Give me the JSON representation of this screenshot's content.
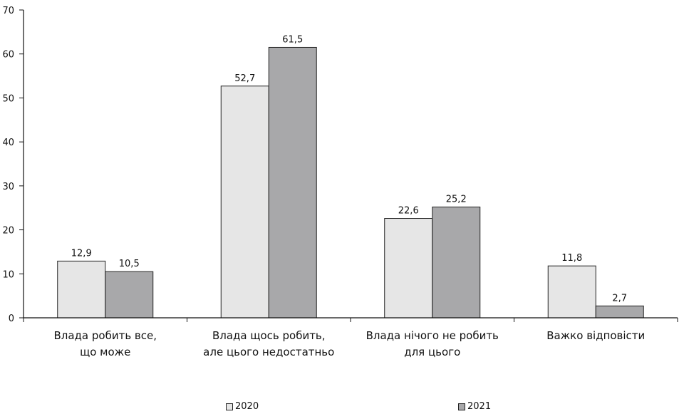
{
  "chart_data": {
    "type": "bar",
    "categories": [
      [
        "Влада робить все,",
        "що може"
      ],
      [
        "Влада щось робить,",
        "але цього недостатньо"
      ],
      [
        "Влада нічого не робить",
        "для цього"
      ],
      [
        "Важко відповісти"
      ]
    ],
    "series": [
      {
        "name": "2020",
        "color": "#e6e6e6",
        "values": [
          12.9,
          52.7,
          22.6,
          11.8
        ],
        "labels": [
          "12,9",
          "52,7",
          "22,6",
          "11,8"
        ]
      },
      {
        "name": "2021",
        "color": "#a8a8aa",
        "values": [
          10.5,
          61.5,
          25.2,
          2.7
        ],
        "labels": [
          "10,5",
          "61,5",
          "25,2",
          "2,7"
        ]
      }
    ],
    "ylim": [
      0,
      70
    ],
    "yticks": [
      0,
      10,
      20,
      30,
      40,
      50,
      60,
      70
    ],
    "grid": false,
    "legend_position": "bottom",
    "title": "",
    "xlabel": "",
    "ylabel": ""
  }
}
